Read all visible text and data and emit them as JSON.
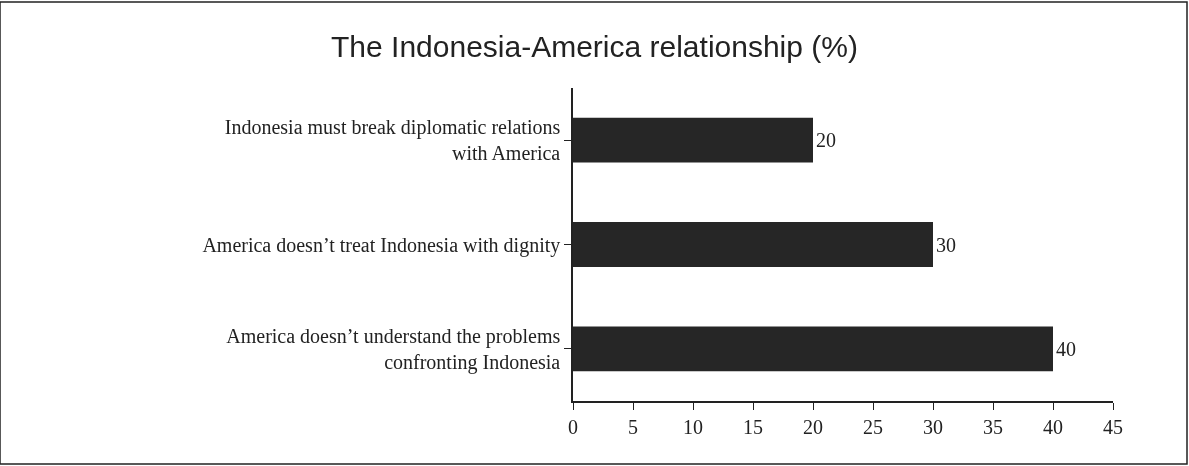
{
  "chart_data": {
    "type": "bar",
    "orientation": "horizontal",
    "title": "The Indonesia-America relationship (%)",
    "categories": [
      "Indonesia must break diplomatic relations with America",
      "America doesn’t treat Indonesia with dignity",
      "America doesn’t understand the problems confronting Indonesia"
    ],
    "values": [
      20,
      30,
      40
    ],
    "color": "#262626",
    "data_labels": true,
    "xlim": [
      0,
      45
    ],
    "xticks": [
      0,
      5,
      10,
      15,
      20,
      25,
      30,
      35,
      40,
      45
    ]
  }
}
